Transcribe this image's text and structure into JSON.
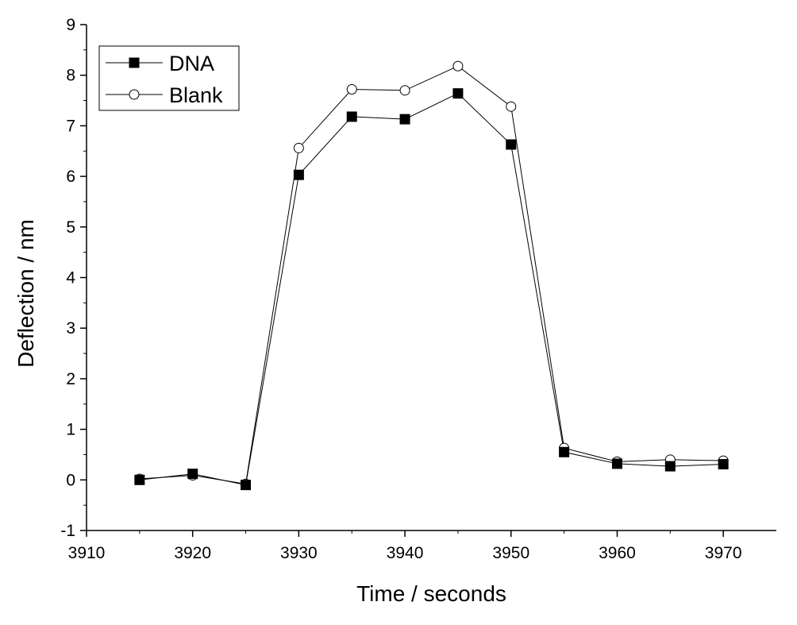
{
  "chart_data": {
    "type": "line",
    "xlabel": "Time / seconds",
    "ylabel": "Deflection / nm",
    "xlim": [
      3910,
      3975
    ],
    "ylim": [
      -1,
      9
    ],
    "x_ticks": [
      3910,
      3920,
      3930,
      3940,
      3950,
      3960,
      3970
    ],
    "x_tick_labels": [
      "3910",
      "3920",
      "3930",
      "3940",
      "3950",
      "3960",
      "3970"
    ],
    "y_ticks": [
      -1,
      0,
      1,
      2,
      3,
      4,
      5,
      6,
      7,
      8,
      9
    ],
    "y_tick_labels": [
      "-1",
      "0",
      "1",
      "2",
      "3",
      "4",
      "5",
      "6",
      "7",
      "8",
      "9"
    ],
    "grid": false,
    "legend_position": "top-left",
    "x": [
      3915,
      3920,
      3925,
      3930,
      3935,
      3940,
      3945,
      3950,
      3955,
      3960,
      3965,
      3970
    ],
    "series": [
      {
        "name": "DNA",
        "marker": "filled-square",
        "color": "#000000",
        "values": [
          0.0,
          0.12,
          -0.1,
          6.03,
          7.18,
          7.13,
          7.64,
          6.63,
          0.55,
          0.32,
          0.27,
          0.31
        ]
      },
      {
        "name": "Blank",
        "marker": "open-circle",
        "color": "#000000",
        "values": [
          0.02,
          0.09,
          -0.08,
          6.56,
          7.72,
          7.7,
          8.18,
          7.38,
          0.63,
          0.36,
          0.4,
          0.38
        ]
      }
    ]
  }
}
